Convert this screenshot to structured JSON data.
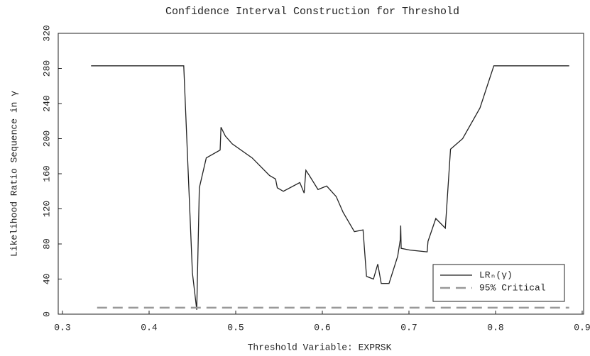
{
  "chart_data": {
    "type": "line",
    "title": "Confidence Interval Construction for Threshold",
    "x_label": "Threshold Variable: EXPRSK",
    "y_label": "Likelihood Ratio Sequence in γ",
    "xlim": [
      0.3,
      0.9
    ],
    "xticks": [
      0.3,
      0.4,
      0.5,
      0.6,
      0.7,
      0.8,
      0.9
    ],
    "ylim": [
      0,
      320
    ],
    "yticks": [
      0,
      40,
      80,
      120,
      160,
      200,
      240,
      280,
      320
    ],
    "legend": "lower right",
    "series": [
      {
        "name": "LRₙ(γ)",
        "color": "#222222",
        "dash": false,
        "x": [
          0.333,
          0.44,
          0.45,
          0.455,
          0.458,
          0.466,
          0.482,
          0.483,
          0.488,
          0.496,
          0.519,
          0.539,
          0.546,
          0.548,
          0.555,
          0.574,
          0.579,
          0.581,
          0.585,
          0.595,
          0.605,
          0.616,
          0.624,
          0.637,
          0.647,
          0.651,
          0.659,
          0.664,
          0.668,
          0.677,
          0.687,
          0.69,
          0.6905,
          0.691,
          0.701,
          0.721,
          0.722,
          0.731,
          0.742,
          0.748,
          0.762,
          0.782,
          0.798,
          0.885
        ],
        "values": [
          283,
          283,
          47,
          5,
          144,
          178,
          187,
          213,
          203,
          194,
          178,
          158,
          154,
          144,
          140,
          150,
          138,
          164,
          158,
          142,
          146,
          134,
          116,
          94,
          96,
          43,
          40,
          57,
          35,
          35,
          66,
          85,
          101,
          75,
          73,
          71,
          83,
          109,
          98,
          188,
          200,
          235,
          283,
          283
        ]
      },
      {
        "name": "95% Critical",
        "color": "#999999",
        "dash": true,
        "x": [
          0.34,
          0.885
        ],
        "values": [
          7.35,
          7.35
        ]
      }
    ]
  }
}
